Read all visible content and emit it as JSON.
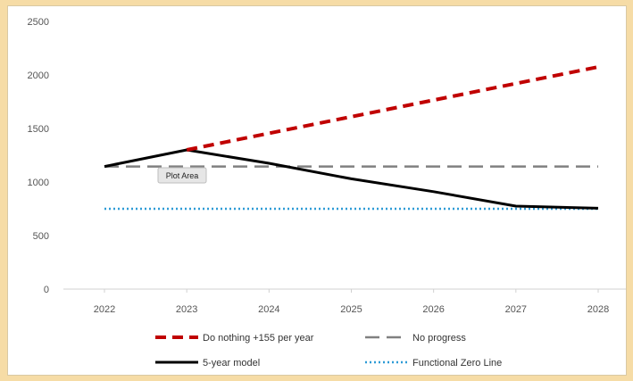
{
  "chart_data": {
    "type": "line",
    "categories": [
      "2022",
      "2023",
      "2024",
      "2025",
      "2026",
      "2027",
      "2028"
    ],
    "ylim": [
      0,
      2500
    ],
    "yticks": [
      0,
      500,
      1000,
      1500,
      2000,
      2500
    ],
    "grid": false,
    "legend_position": "bottom",
    "series": [
      {
        "name": "Do nothing +155 per year",
        "color": "#c00000",
        "dash": "dashed",
        "values": [
          null,
          1300,
          1455,
          1610,
          1765,
          1920,
          2075
        ]
      },
      {
        "name": "No progress",
        "color": "#808080",
        "dash": "long-dash",
        "values": [
          1145,
          1145,
          1145,
          1145,
          1145,
          1145,
          1145
        ]
      },
      {
        "name": "5-year model",
        "color": "#000000",
        "dash": "solid",
        "values": [
          1145,
          1300,
          1175,
          1030,
          910,
          775,
          755
        ]
      },
      {
        "name": "Functional Zero Line",
        "color": "#2e9bd6",
        "dash": "dotted",
        "values": [
          750,
          750,
          750,
          750,
          750,
          750,
          750
        ]
      }
    ],
    "tooltip": "Plot Area"
  }
}
